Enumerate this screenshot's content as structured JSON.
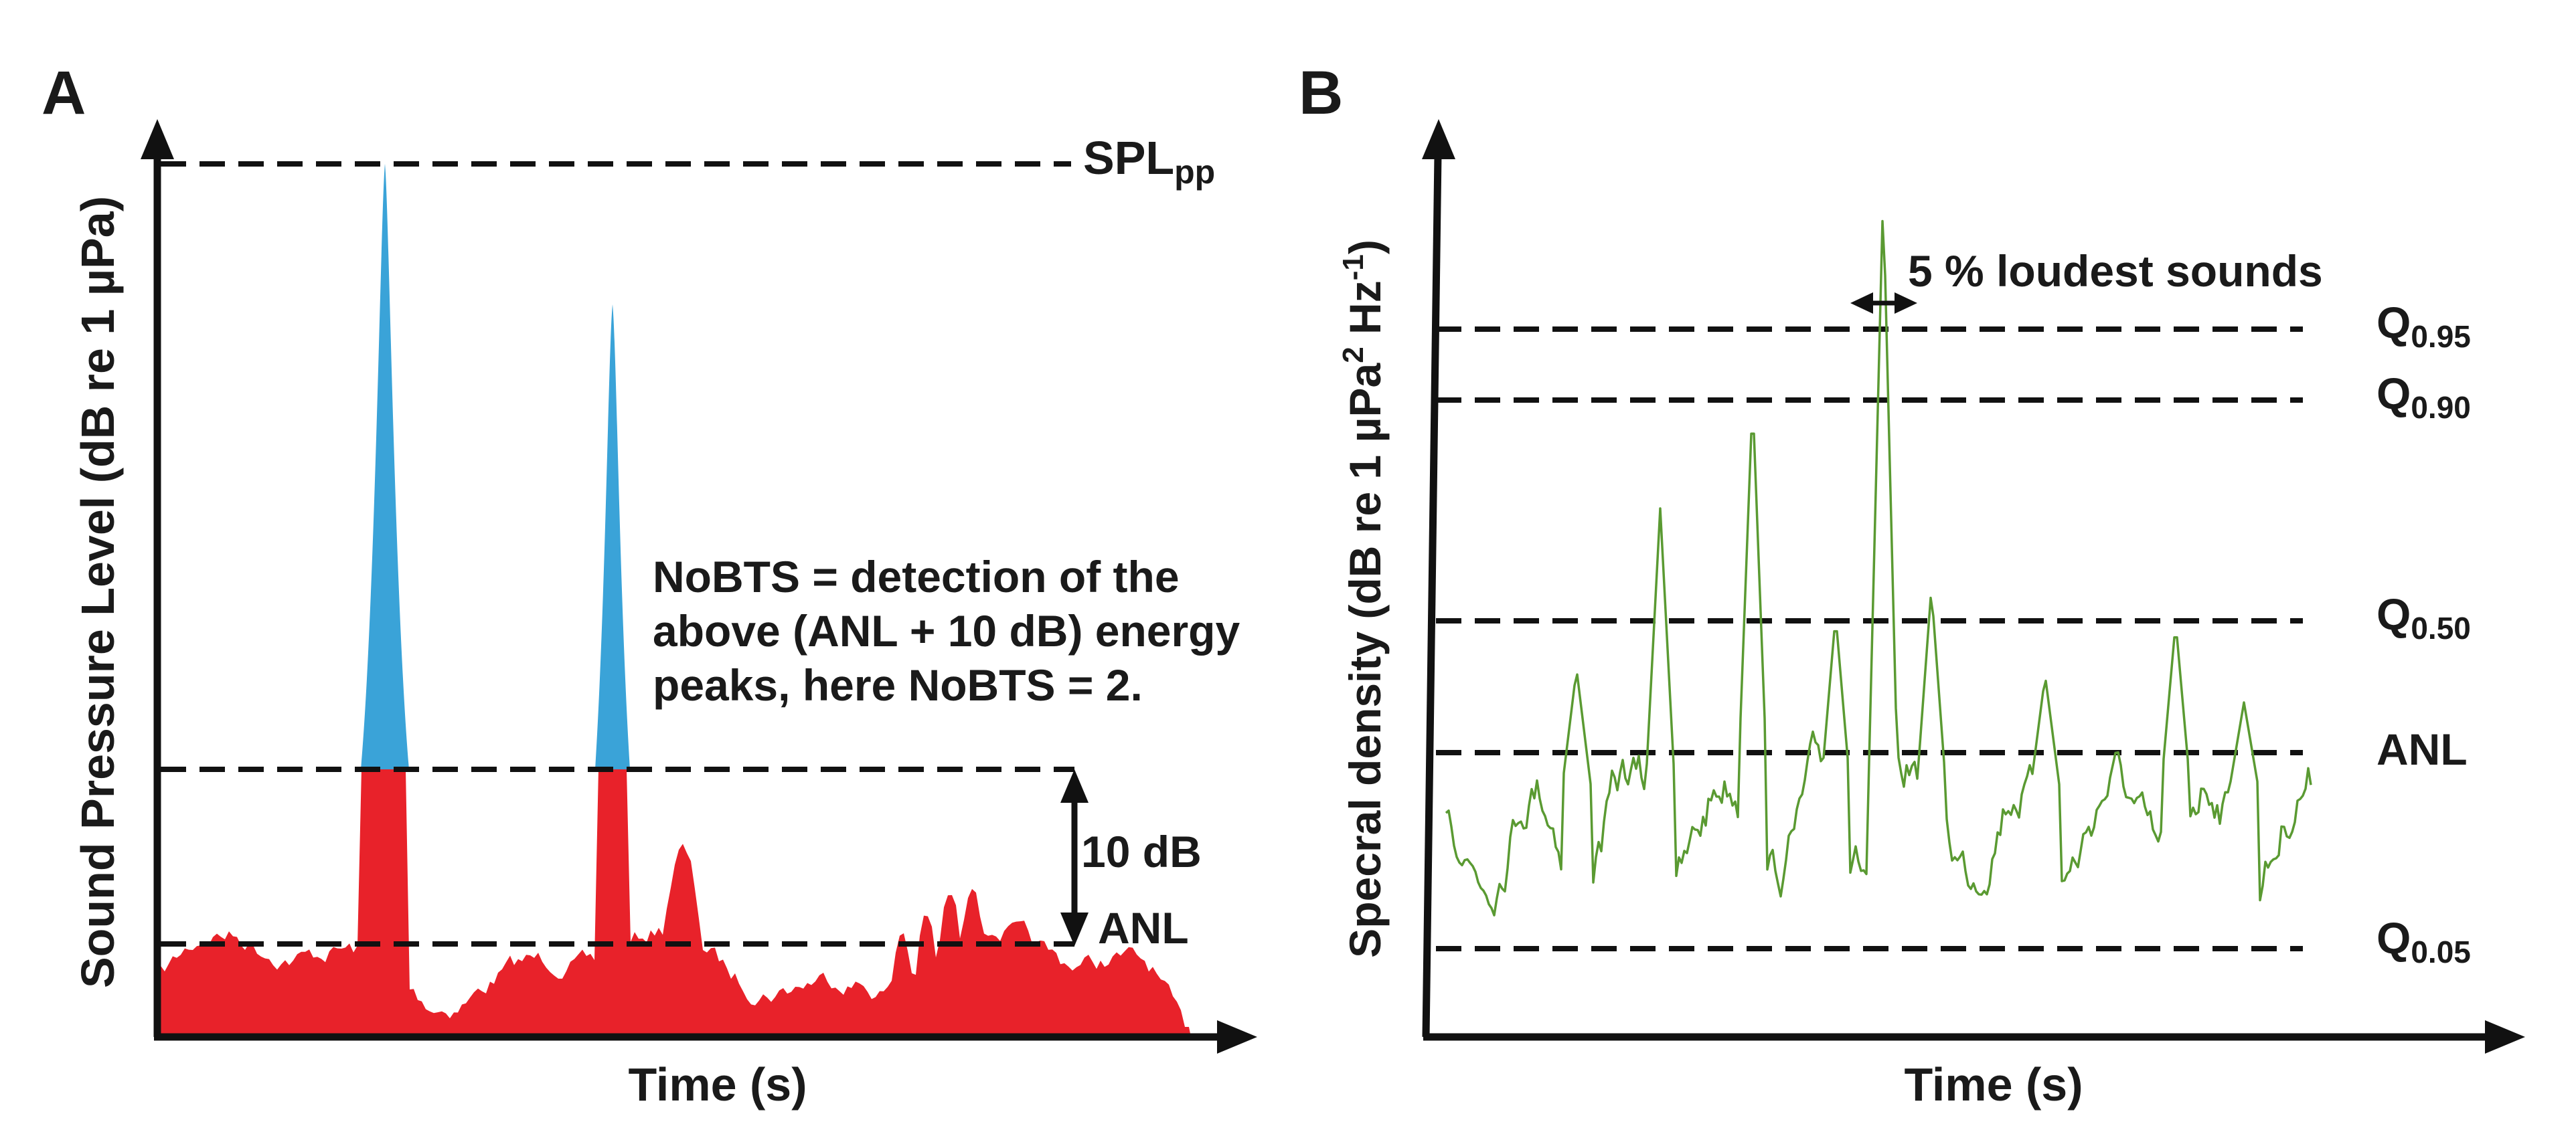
{
  "colors": {
    "background_red": "#e8222a",
    "peak_blue": "#3aa3d8",
    "spectral_green": "#5a9a32",
    "ink": "#111111"
  },
  "panel_a": {
    "label": "A",
    "y_axis_label": "Sound Pressure Level (dB re 1 µPa)",
    "x_axis_label": "Time (s)",
    "spl_label_main": "SPL",
    "spl_label_sub": "pp",
    "ten_db_label": "10 dB",
    "anl_label": "ANL",
    "annotation_lines": [
      "NoBTS = detection of the",
      "above (ANL + 10 dB) energy",
      "peaks, here NoBTS = 2."
    ]
  },
  "panel_b": {
    "label": "B",
    "y_axis_label_prefix": "Specral density (dB re 1 µPa",
    "y_axis_label_sup1": "2",
    "y_axis_label_mid": " Hz",
    "y_axis_label_sup2": "-1",
    "y_axis_label_suffix": ")",
    "x_axis_label": "Time (s)",
    "loudest_label": "5 % loudest sounds",
    "levels": [
      {
        "main": "Q",
        "sub": "0.95"
      },
      {
        "main": "Q",
        "sub": "0.90"
      },
      {
        "main": "Q",
        "sub": "0.50"
      },
      {
        "main": "ANL",
        "sub": ""
      },
      {
        "main": "Q",
        "sub": "0.05"
      }
    ]
  }
}
